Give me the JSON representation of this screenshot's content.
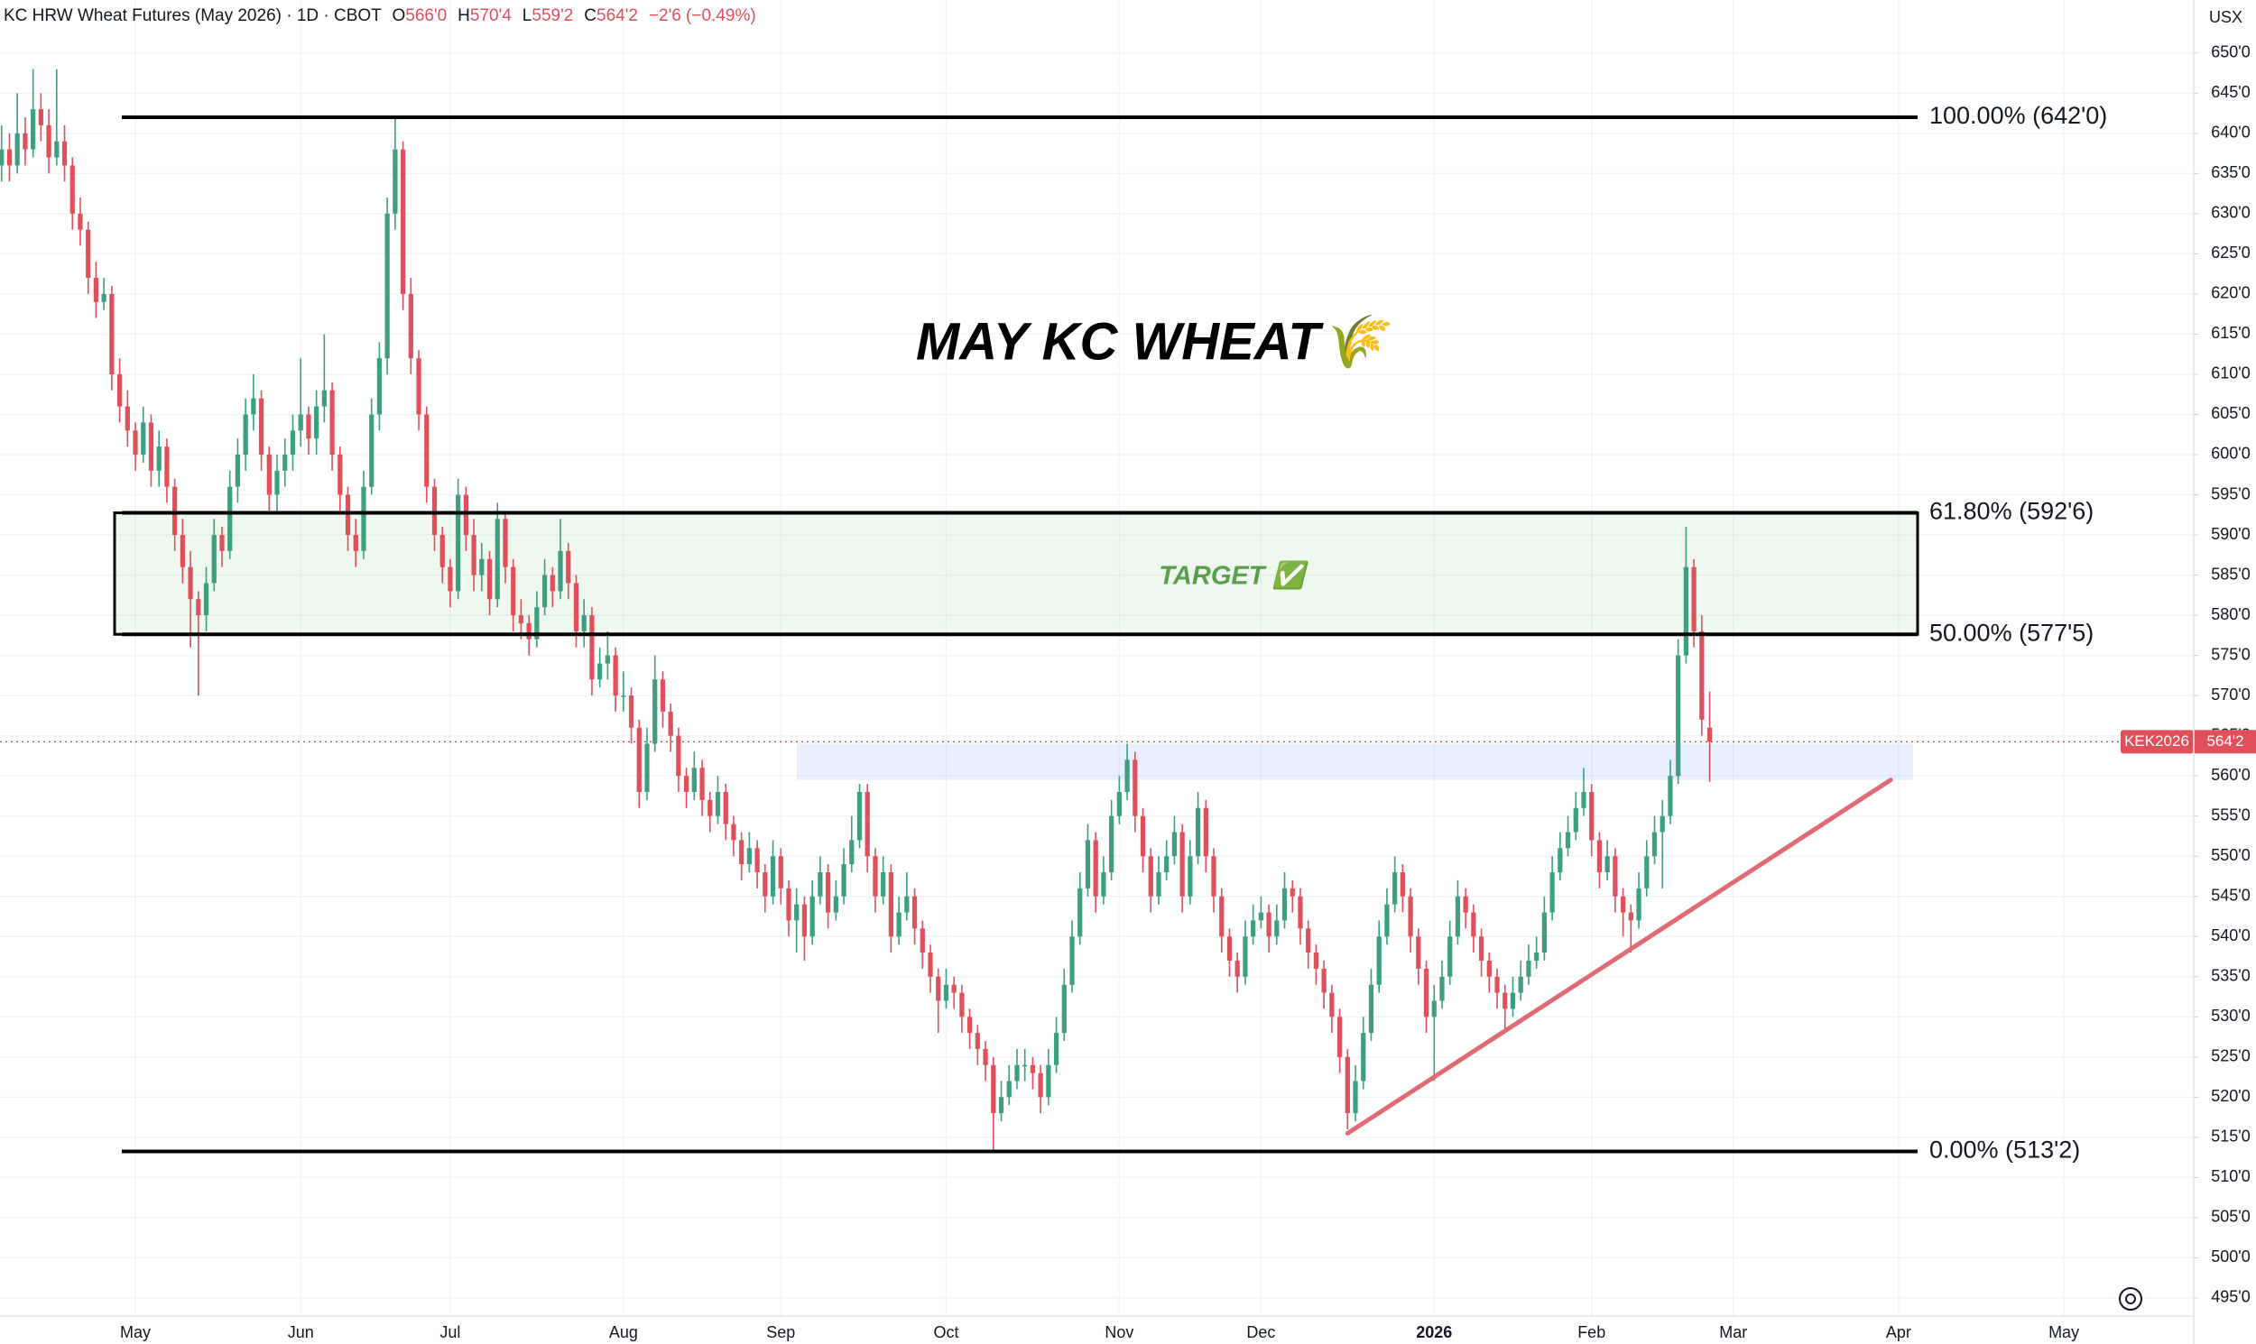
{
  "chart_data": {
    "type": "candlestick",
    "title": "KC HRW Wheat Futures (May 2026) · 1D · CBOT",
    "ohlc": [
      {
        "key": "O",
        "value": "566'0"
      },
      {
        "key": "H",
        "value": "570'4"
      },
      {
        "key": "L",
        "value": "559'2"
      },
      {
        "key": "C",
        "value": "564'2"
      }
    ],
    "change": "−2'6 (−0.49%)",
    "currency": "USX",
    "annotation_title": "MAY KC WHEAT🌾",
    "target_label": "TARGET ✅",
    "symbol": "KEK2026",
    "last": 564.25,
    "last_label": "564'2",
    "up_color": "#3d9f80",
    "down_color": "#e0505a",
    "grid": true,
    "xlim": [
      -0.2,
      278.5
    ],
    "xticks": [
      {
        "value": 17,
        "label": "May"
      },
      {
        "value": 38,
        "label": "Jun"
      },
      {
        "value": 57,
        "label": "Jul"
      },
      {
        "value": 79,
        "label": "Aug"
      },
      {
        "value": 99,
        "label": "Sep"
      },
      {
        "value": 120,
        "label": "Oct"
      },
      {
        "value": 142,
        "label": "Nov"
      },
      {
        "value": 160,
        "label": "Dec"
      },
      {
        "value": 182,
        "label": "2026"
      },
      {
        "value": 202,
        "label": "Feb"
      },
      {
        "value": 220,
        "label": "Mar"
      },
      {
        "value": 241,
        "label": "Apr"
      },
      {
        "value": 262,
        "label": "May"
      }
    ],
    "ylim": [
      492.75,
      656.6
    ],
    "yticks": [
      {
        "value": 495,
        "label": "495'0"
      },
      {
        "value": 500,
        "label": "500'0"
      },
      {
        "value": 505,
        "label": "505'0"
      },
      {
        "value": 510,
        "label": "510'0"
      },
      {
        "value": 515,
        "label": "515'0"
      },
      {
        "value": 520,
        "label": "520'0"
      },
      {
        "value": 525,
        "label": "525'0"
      },
      {
        "value": 530,
        "label": "530'0"
      },
      {
        "value": 535,
        "label": "535'0"
      },
      {
        "value": 540,
        "label": "540'0"
      },
      {
        "value": 545,
        "label": "545'0"
      },
      {
        "value": 550,
        "label": "550'0"
      },
      {
        "value": 555,
        "label": "555'0"
      },
      {
        "value": 560,
        "label": "560'0"
      },
      {
        "value": 565,
        "label": "565'0"
      },
      {
        "value": 570,
        "label": "570'0"
      },
      {
        "value": 575,
        "label": "575'0"
      },
      {
        "value": 580,
        "label": "580'0"
      },
      {
        "value": 585,
        "label": "585'0"
      },
      {
        "value": 590,
        "label": "590'0"
      },
      {
        "value": 595,
        "label": "595'0"
      },
      {
        "value": 600,
        "label": "600'0"
      },
      {
        "value": 605,
        "label": "605'0"
      },
      {
        "value": 610,
        "label": "610'0"
      },
      {
        "value": 615,
        "label": "615'0"
      },
      {
        "value": 620,
        "label": "620'0"
      },
      {
        "value": 625,
        "label": "625'0"
      },
      {
        "value": 630,
        "label": "630'0"
      },
      {
        "value": 635,
        "label": "635'0"
      },
      {
        "value": 640,
        "label": "640'0"
      },
      {
        "value": 645,
        "label": "645'0"
      },
      {
        "value": 650,
        "label": "650'0"
      }
    ],
    "fib_levels": [
      {
        "label": "100.00% (642'0)",
        "value": 642
      },
      {
        "label": "61.80% (592'6)",
        "value": 592.75
      },
      {
        "label": "50.00% (577'5)",
        "value": 577.625
      },
      {
        "label": "0.00% (513'2)",
        "value": 513.25
      }
    ],
    "zone": {
      "low": 559.5,
      "high": 564
    },
    "trendline": {
      "x": [
        171,
        240
      ],
      "y": [
        515.5,
        559.5
      ]
    },
    "candles": [
      [
        636,
        641,
        634,
        638
      ],
      [
        638,
        640,
        634,
        636
      ],
      [
        636,
        645,
        635,
        640
      ],
      [
        640,
        642,
        636,
        638
      ],
      [
        638,
        648,
        637,
        643
      ],
      [
        643,
        645,
        639,
        641
      ],
      [
        641,
        643,
        635,
        637
      ],
      [
        637,
        648,
        636,
        639
      ],
      [
        639,
        641,
        634,
        636
      ],
      [
        636,
        637,
        628,
        630
      ],
      [
        630,
        632,
        626,
        628
      ],
      [
        628,
        629,
        620,
        622
      ],
      [
        622,
        624,
        617,
        619
      ],
      [
        619,
        622,
        618,
        620
      ],
      [
        620,
        621,
        608,
        610
      ],
      [
        610,
        612,
        604,
        606
      ],
      [
        606,
        608,
        601,
        603
      ],
      [
        603,
        604,
        598,
        600
      ],
      [
        600,
        606,
        599,
        604
      ],
      [
        604,
        605,
        596,
        598
      ],
      [
        598,
        603,
        596,
        601
      ],
      [
        601,
        602,
        594,
        596
      ],
      [
        596,
        597,
        588,
        590
      ],
      [
        590,
        592,
        584,
        586
      ],
      [
        586,
        588,
        576,
        582
      ],
      [
        582,
        583,
        570,
        580
      ],
      [
        580,
        586,
        578,
        584
      ],
      [
        584,
        592,
        583,
        590
      ],
      [
        590,
        591,
        586,
        588
      ],
      [
        588,
        598,
        587,
        596
      ],
      [
        596,
        602,
        594,
        600
      ],
      [
        600,
        607,
        598,
        605
      ],
      [
        605,
        610,
        603,
        607
      ],
      [
        607,
        608,
        598,
        600
      ],
      [
        600,
        601,
        593,
        595
      ],
      [
        595,
        600,
        593,
        598
      ],
      [
        598,
        602,
        596,
        600
      ],
      [
        600,
        605,
        598,
        603
      ],
      [
        603,
        612,
        601,
        605
      ],
      [
        605,
        606,
        600,
        602
      ],
      [
        602,
        608,
        600,
        606
      ],
      [
        606,
        615,
        604,
        608
      ],
      [
        608,
        609,
        598,
        600
      ],
      [
        600,
        601,
        593,
        595
      ],
      [
        595,
        596,
        588,
        590
      ],
      [
        590,
        592,
        586,
        588
      ],
      [
        588,
        598,
        587,
        596
      ],
      [
        596,
        607,
        595,
        605
      ],
      [
        605,
        614,
        603,
        612
      ],
      [
        612,
        632,
        610,
        630
      ],
      [
        630,
        642,
        628,
        638
      ],
      [
        638,
        639,
        618,
        620
      ],
      [
        620,
        622,
        610,
        612
      ],
      [
        612,
        613,
        603,
        605
      ],
      [
        605,
        606,
        594,
        596
      ],
      [
        596,
        597,
        588,
        590
      ],
      [
        590,
        591,
        584,
        586
      ],
      [
        586,
        587,
        581,
        583
      ],
      [
        583,
        597,
        582,
        595
      ],
      [
        595,
        596,
        588,
        590
      ],
      [
        590,
        592,
        583,
        585
      ],
      [
        585,
        589,
        583,
        587
      ],
      [
        587,
        588,
        580,
        582
      ],
      [
        582,
        594,
        581,
        592
      ],
      [
        592,
        593,
        584,
        586
      ],
      [
        586,
        587,
        578,
        580
      ],
      [
        580,
        582,
        577,
        579
      ],
      [
        579,
        580,
        575,
        577
      ],
      [
        577,
        583,
        576,
        581
      ],
      [
        581,
        587,
        580,
        585
      ],
      [
        585,
        586,
        581,
        583
      ],
      [
        583,
        592,
        582,
        588
      ],
      [
        588,
        589,
        582,
        584
      ],
      [
        584,
        585,
        576,
        578
      ],
      [
        578,
        582,
        576,
        580
      ],
      [
        580,
        581,
        570,
        572
      ],
      [
        572,
        576,
        571,
        574
      ],
      [
        574,
        578,
        572,
        575
      ],
      [
        575,
        576,
        568,
        570
      ],
      [
        570,
        573,
        568,
        570
      ],
      [
        570,
        571,
        564,
        566
      ],
      [
        566,
        567,
        556,
        558
      ],
      [
        558,
        566,
        557,
        564
      ],
      [
        564,
        575,
        563,
        572
      ],
      [
        572,
        573,
        566,
        568
      ],
      [
        568,
        569,
        563,
        565
      ],
      [
        565,
        566,
        558,
        560
      ],
      [
        560,
        561,
        556,
        558
      ],
      [
        558,
        563,
        557,
        561
      ],
      [
        561,
        562,
        555,
        557
      ],
      [
        557,
        558,
        553,
        555
      ],
      [
        555,
        560,
        554,
        558
      ],
      [
        558,
        559,
        552,
        554
      ],
      [
        554,
        555,
        550,
        552
      ],
      [
        552,
        553,
        547,
        549
      ],
      [
        549,
        553,
        548,
        551
      ],
      [
        551,
        552,
        546,
        548
      ],
      [
        548,
        549,
        543,
        545
      ],
      [
        545,
        552,
        544,
        550
      ],
      [
        550,
        551,
        544,
        546
      ],
      [
        546,
        547,
        540,
        542
      ],
      [
        542,
        546,
        538,
        544
      ],
      [
        544,
        545,
        537,
        540
      ],
      [
        540,
        547,
        539,
        545
      ],
      [
        545,
        550,
        544,
        548
      ],
      [
        548,
        549,
        541,
        543
      ],
      [
        543,
        547,
        542,
        545
      ],
      [
        545,
        551,
        544,
        549
      ],
      [
        549,
        555,
        548,
        552
      ],
      [
        552,
        559,
        551,
        558
      ],
      [
        558,
        559,
        548,
        550
      ],
      [
        550,
        551,
        543,
        545
      ],
      [
        545,
        550,
        544,
        548
      ],
      [
        548,
        549,
        538,
        540
      ],
      [
        540,
        545,
        539,
        543
      ],
      [
        543,
        548,
        542,
        545
      ],
      [
        545,
        546,
        539,
        541
      ],
      [
        541,
        542,
        536,
        538
      ],
      [
        538,
        539,
        533,
        535
      ],
      [
        535,
        536,
        528,
        532
      ],
      [
        532,
        536,
        531,
        534
      ],
      [
        534,
        535,
        531,
        533
      ],
      [
        533,
        534,
        528,
        530
      ],
      [
        530,
        531,
        526,
        528
      ],
      [
        528,
        529,
        524,
        526
      ],
      [
        526,
        527,
        522,
        524
      ],
      [
        524,
        525,
        513.25,
        518
      ],
      [
        518,
        522,
        517,
        520
      ],
      [
        520,
        524,
        519,
        522
      ],
      [
        522,
        526,
        521,
        524
      ],
      [
        524,
        526,
        522,
        524
      ],
      [
        524,
        525,
        521,
        523
      ],
      [
        523,
        524,
        518,
        520
      ],
      [
        520,
        526,
        519,
        524
      ],
      [
        524,
        530,
        523,
        528
      ],
      [
        528,
        536,
        527,
        534
      ],
      [
        534,
        542,
        533,
        540
      ],
      [
        540,
        548,
        539,
        546
      ],
      [
        546,
        554,
        545,
        552
      ],
      [
        552,
        553,
        543,
        545
      ],
      [
        545,
        550,
        544,
        548
      ],
      [
        548,
        557,
        547,
        555
      ],
      [
        555,
        560,
        554,
        558
      ],
      [
        558,
        564,
        557,
        562
      ],
      [
        562,
        563,
        553,
        555
      ],
      [
        555,
        556,
        548,
        550
      ],
      [
        550,
        551,
        543,
        545
      ],
      [
        545,
        550,
        544,
        548
      ],
      [
        548,
        552,
        547,
        550
      ],
      [
        550,
        555,
        549,
        553
      ],
      [
        553,
        554,
        543,
        545
      ],
      [
        545,
        552,
        544,
        550
      ],
      [
        550,
        558,
        549,
        556
      ],
      [
        556,
        557,
        548,
        550
      ],
      [
        550,
        551,
        543,
        545
      ],
      [
        545,
        546,
        538,
        540
      ],
      [
        540,
        541,
        535,
        537
      ],
      [
        537,
        538,
        533,
        535
      ],
      [
        535,
        542,
        534,
        540
      ],
      [
        540,
        544,
        539,
        542
      ],
      [
        542,
        545,
        541,
        543
      ],
      [
        543,
        544,
        538,
        540
      ],
      [
        540,
        544,
        539,
        542
      ],
      [
        542,
        548,
        541,
        546
      ],
      [
        546,
        547,
        543,
        545
      ],
      [
        545,
        546,
        539,
        541
      ],
      [
        541,
        542,
        536,
        538
      ],
      [
        538,
        539,
        534,
        536
      ],
      [
        536,
        537,
        531,
        533
      ],
      [
        533,
        534,
        528,
        530
      ],
      [
        530,
        531,
        523,
        525
      ],
      [
        525,
        526,
        516,
        518
      ],
      [
        518,
        524,
        517,
        522
      ],
      [
        522,
        530,
        521,
        528
      ],
      [
        528,
        536,
        527,
        534
      ],
      [
        534,
        542,
        533,
        540
      ],
      [
        540,
        546,
        539,
        544
      ],
      [
        544,
        550,
        543,
        548
      ],
      [
        548,
        549,
        543,
        545
      ],
      [
        545,
        546,
        538,
        540
      ],
      [
        540,
        541,
        534,
        536
      ],
      [
        536,
        537,
        528,
        530
      ],
      [
        530,
        534,
        522,
        532
      ],
      [
        532,
        537,
        531,
        535
      ],
      [
        535,
        542,
        534,
        540
      ],
      [
        540,
        547,
        539,
        545
      ],
      [
        545,
        546,
        541,
        543
      ],
      [
        543,
        544,
        538,
        540
      ],
      [
        540,
        541,
        535,
        537
      ],
      [
        537,
        538,
        533,
        535
      ],
      [
        535,
        536,
        531,
        533
      ],
      [
        533,
        534,
        528,
        531
      ],
      [
        531,
        535,
        530,
        533
      ],
      [
        533,
        537,
        532,
        535
      ],
      [
        535,
        539,
        534,
        537
      ],
      [
        537,
        540,
        536,
        538
      ],
      [
        538,
        545,
        537,
        543
      ],
      [
        543,
        550,
        542,
        548
      ],
      [
        548,
        553,
        547,
        551
      ],
      [
        551,
        555,
        550,
        553
      ],
      [
        553,
        558,
        552,
        556
      ],
      [
        556,
        561,
        555,
        558
      ],
      [
        558,
        559,
        550,
        552
      ],
      [
        552,
        553,
        546,
        548
      ],
      [
        548,
        552,
        547,
        550
      ],
      [
        550,
        551,
        543,
        545
      ],
      [
        545,
        546,
        540,
        543
      ],
      [
        543,
        544,
        538,
        542
      ],
      [
        542,
        548,
        541,
        546
      ],
      [
        546,
        552,
        545,
        550
      ],
      [
        550,
        555,
        549,
        553
      ],
      [
        553,
        557,
        546,
        555
      ],
      [
        555,
        562,
        554,
        560
      ],
      [
        560,
        577,
        559,
        575
      ],
      [
        575,
        591,
        574,
        586
      ],
      [
        586,
        587,
        576,
        578
      ],
      [
        578,
        580,
        565,
        567
      ],
      [
        566,
        570.5,
        559.25,
        564.25
      ]
    ]
  }
}
